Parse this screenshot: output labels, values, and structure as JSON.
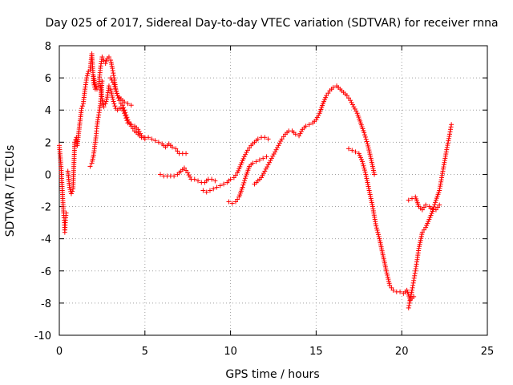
{
  "chart_data": {
    "type": "scatter",
    "title": "Day 025 of 2017, Sidereal Day-to-day VTEC variation (SDTVAR) for receiver rnna",
    "xlabel": "GPS time / hours",
    "ylabel": "SDTVAR / TECUs",
    "xlim": [
      0,
      25
    ],
    "ylim": [
      -10,
      8
    ],
    "xticks": [
      0,
      5,
      10,
      15,
      20,
      25
    ],
    "yticks": [
      -10,
      -8,
      -6,
      -4,
      -2,
      0,
      2,
      4,
      6,
      8
    ],
    "xtick_labels": [
      "0",
      "5",
      "10",
      "15",
      "20",
      "25"
    ],
    "ytick_labels": [
      "-10",
      "-8",
      "-6",
      "-4",
      "-2",
      "0",
      "2",
      "4",
      "6",
      "8"
    ],
    "grid": true,
    "marker": "plus",
    "color": "#ff0000",
    "series": [
      {
        "x": [
          0.0,
          0.1,
          0.15,
          0.2,
          0.25,
          0.3,
          0.32,
          0.35,
          0.4
        ],
        "y": [
          1.8,
          0.5,
          -0.5,
          -1.5,
          -2.4,
          -3.0,
          -3.6,
          -3.0,
          -2.4
        ]
      },
      {
        "x": [
          0.5,
          0.6,
          0.7,
          0.8,
          0.9,
          1.0,
          1.05,
          1.1,
          1.2,
          1.3,
          1.4,
          1.5,
          1.6,
          1.7,
          1.8,
          1.9,
          2.0,
          2.1
        ],
        "y": [
          0.2,
          -0.8,
          -1.2,
          -0.9,
          2.0,
          2.3,
          1.8,
          2.3,
          3.2,
          4.1,
          4.4,
          5.3,
          6.0,
          6.4,
          6.5,
          7.5,
          5.7,
          5.3
        ]
      },
      {
        "x": [
          1.8,
          1.9,
          2.0,
          2.1,
          2.15,
          2.2,
          2.25,
          2.3,
          2.35,
          2.4,
          2.45,
          2.5
        ],
        "y": [
          0.5,
          0.7,
          1.2,
          2.0,
          2.4,
          3.0,
          3.4,
          3.7,
          4.0,
          4.4,
          5.0,
          5.8
        ]
      },
      {
        "x": [
          2.0,
          2.1,
          2.2,
          2.3,
          2.4,
          2.5,
          2.6,
          2.7,
          2.8,
          2.9,
          3.0,
          3.1,
          3.2,
          3.3,
          3.4,
          3.5,
          3.6,
          3.7,
          3.8,
          3.9,
          4.0,
          4.2,
          4.4,
          4.6,
          4.8,
          5.0,
          5.2,
          5.4,
          5.6,
          5.8,
          6.0,
          6.2,
          6.4,
          6.6,
          6.8,
          7.0,
          7.2,
          7.4
        ],
        "y": [
          6.1,
          5.6,
          5.3,
          5.5,
          6.6,
          7.3,
          7.1,
          6.9,
          7.2,
          7.3,
          7.1,
          6.6,
          6.0,
          5.3,
          4.9,
          4.6,
          4.4,
          4.3,
          4.0,
          3.7,
          3.4,
          3.0,
          2.7,
          2.5,
          2.3,
          2.3,
          2.3,
          2.2,
          2.1,
          2.0,
          1.9,
          1.7,
          1.9,
          1.7,
          1.6,
          1.3,
          1.3,
          1.3
        ]
      },
      {
        "x": [
          2.4,
          2.5,
          2.6,
          2.7,
          2.8,
          2.9,
          3.0,
          3.1,
          3.2,
          3.3,
          3.4,
          3.5,
          3.6,
          3.7,
          3.8,
          3.9,
          4.0,
          4.2,
          4.4,
          4.6,
          4.8,
          5.0
        ],
        "y": [
          5.5,
          4.7,
          4.2,
          4.4,
          4.8,
          5.5,
          5.3,
          4.8,
          4.4,
          4.1,
          4.0,
          4.1,
          4.1,
          4.1,
          3.8,
          3.5,
          3.2,
          3.1,
          3.0,
          2.8,
          2.4,
          2.2
        ]
      },
      {
        "x": [
          3.0,
          3.2,
          3.4,
          3.6,
          3.8,
          4.0,
          4.2
        ],
        "y": [
          6.0,
          5.6,
          4.9,
          4.7,
          4.5,
          4.4,
          4.3
        ]
      },
      {
        "x": [
          5.9,
          6.1,
          6.3,
          6.5,
          6.7,
          6.9,
          7.1,
          7.3,
          7.5,
          7.7,
          7.9,
          8.1,
          8.3,
          8.5,
          8.7,
          8.9,
          9.1
        ],
        "y": [
          0.0,
          -0.1,
          -0.1,
          -0.1,
          -0.1,
          0.0,
          0.2,
          0.4,
          0.1,
          -0.3,
          -0.3,
          -0.4,
          -0.5,
          -0.5,
          -0.3,
          -0.3,
          -0.4
        ]
      },
      {
        "x": [
          8.4,
          8.6,
          8.8,
          9.0,
          9.2,
          9.4,
          9.6,
          9.8,
          10.0,
          10.2,
          10.4,
          10.6,
          10.8,
          11.0,
          11.2,
          11.4,
          11.6,
          11.8,
          12.0,
          12.2
        ],
        "y": [
          -1.0,
          -1.1,
          -1.0,
          -0.9,
          -0.8,
          -0.7,
          -0.6,
          -0.5,
          -0.3,
          -0.2,
          0.1,
          0.6,
          1.1,
          1.5,
          1.8,
          2.0,
          2.2,
          2.3,
          2.3,
          2.2
        ]
      },
      {
        "x": [
          9.9,
          10.1,
          10.3,
          10.5,
          10.7,
          10.9,
          11.1,
          11.3,
          11.5,
          11.7,
          11.9,
          12.1
        ],
        "y": [
          -1.7,
          -1.8,
          -1.7,
          -1.4,
          -0.8,
          -0.1,
          0.5,
          0.7,
          0.8,
          0.9,
          1.0,
          1.1
        ]
      },
      {
        "x": [
          11.4,
          11.6,
          11.8,
          12.0,
          12.2,
          12.4,
          12.6,
          12.8,
          13.0,
          13.2,
          13.4,
          13.6,
          13.8,
          14.0,
          14.2,
          14.4,
          14.6,
          14.8,
          15.0,
          15.2,
          15.4,
          15.6,
          15.8,
          16.0,
          16.2,
          16.4,
          16.6,
          16.8,
          17.0,
          17.2,
          17.4,
          17.6,
          17.8,
          18.0,
          18.2,
          18.4
        ],
        "y": [
          -0.6,
          -0.4,
          -0.2,
          0.2,
          0.6,
          1.0,
          1.4,
          1.8,
          2.2,
          2.5,
          2.7,
          2.7,
          2.5,
          2.4,
          2.8,
          3.0,
          3.1,
          3.2,
          3.4,
          3.8,
          4.4,
          4.9,
          5.2,
          5.4,
          5.5,
          5.3,
          5.1,
          4.9,
          4.6,
          4.2,
          3.8,
          3.2,
          2.6,
          1.9,
          1.0,
          0.0
        ]
      },
      {
        "x": [
          16.9,
          17.1,
          17.3,
          17.5,
          17.7,
          17.9,
          18.1,
          18.3,
          18.5,
          18.7,
          18.9,
          19.1,
          19.3,
          19.5,
          19.7,
          19.9,
          20.1,
          20.3,
          20.5,
          20.7
        ],
        "y": [
          1.6,
          1.5,
          1.4,
          1.3,
          0.8,
          0.0,
          -1.0,
          -2.0,
          -3.2,
          -4.0,
          -5.0,
          -6.0,
          -6.9,
          -7.2,
          -7.3,
          -7.3,
          -7.4,
          -7.2,
          -7.8,
          -7.6
        ]
      },
      {
        "x": [
          20.4,
          20.5,
          20.6,
          20.7,
          20.8,
          20.9,
          21.0,
          21.2,
          21.4,
          21.6,
          21.8,
          22.0,
          22.2,
          22.4,
          22.6,
          22.8,
          22.9
        ],
        "y": [
          -8.3,
          -7.7,
          -7.2,
          -6.6,
          -6.0,
          -5.3,
          -4.6,
          -3.6,
          -3.3,
          -2.8,
          -2.3,
          -1.6,
          -1.0,
          0.2,
          1.4,
          2.5,
          3.1
        ]
      },
      {
        "x": [
          20.4,
          20.6,
          20.8,
          21.0,
          21.2,
          21.4,
          21.6,
          21.8,
          22.0,
          22.2
        ],
        "y": [
          -1.6,
          -1.5,
          -1.4,
          -2.0,
          -2.2,
          -1.9,
          -2.0,
          -2.2,
          -2.2,
          -1.9
        ]
      }
    ]
  }
}
